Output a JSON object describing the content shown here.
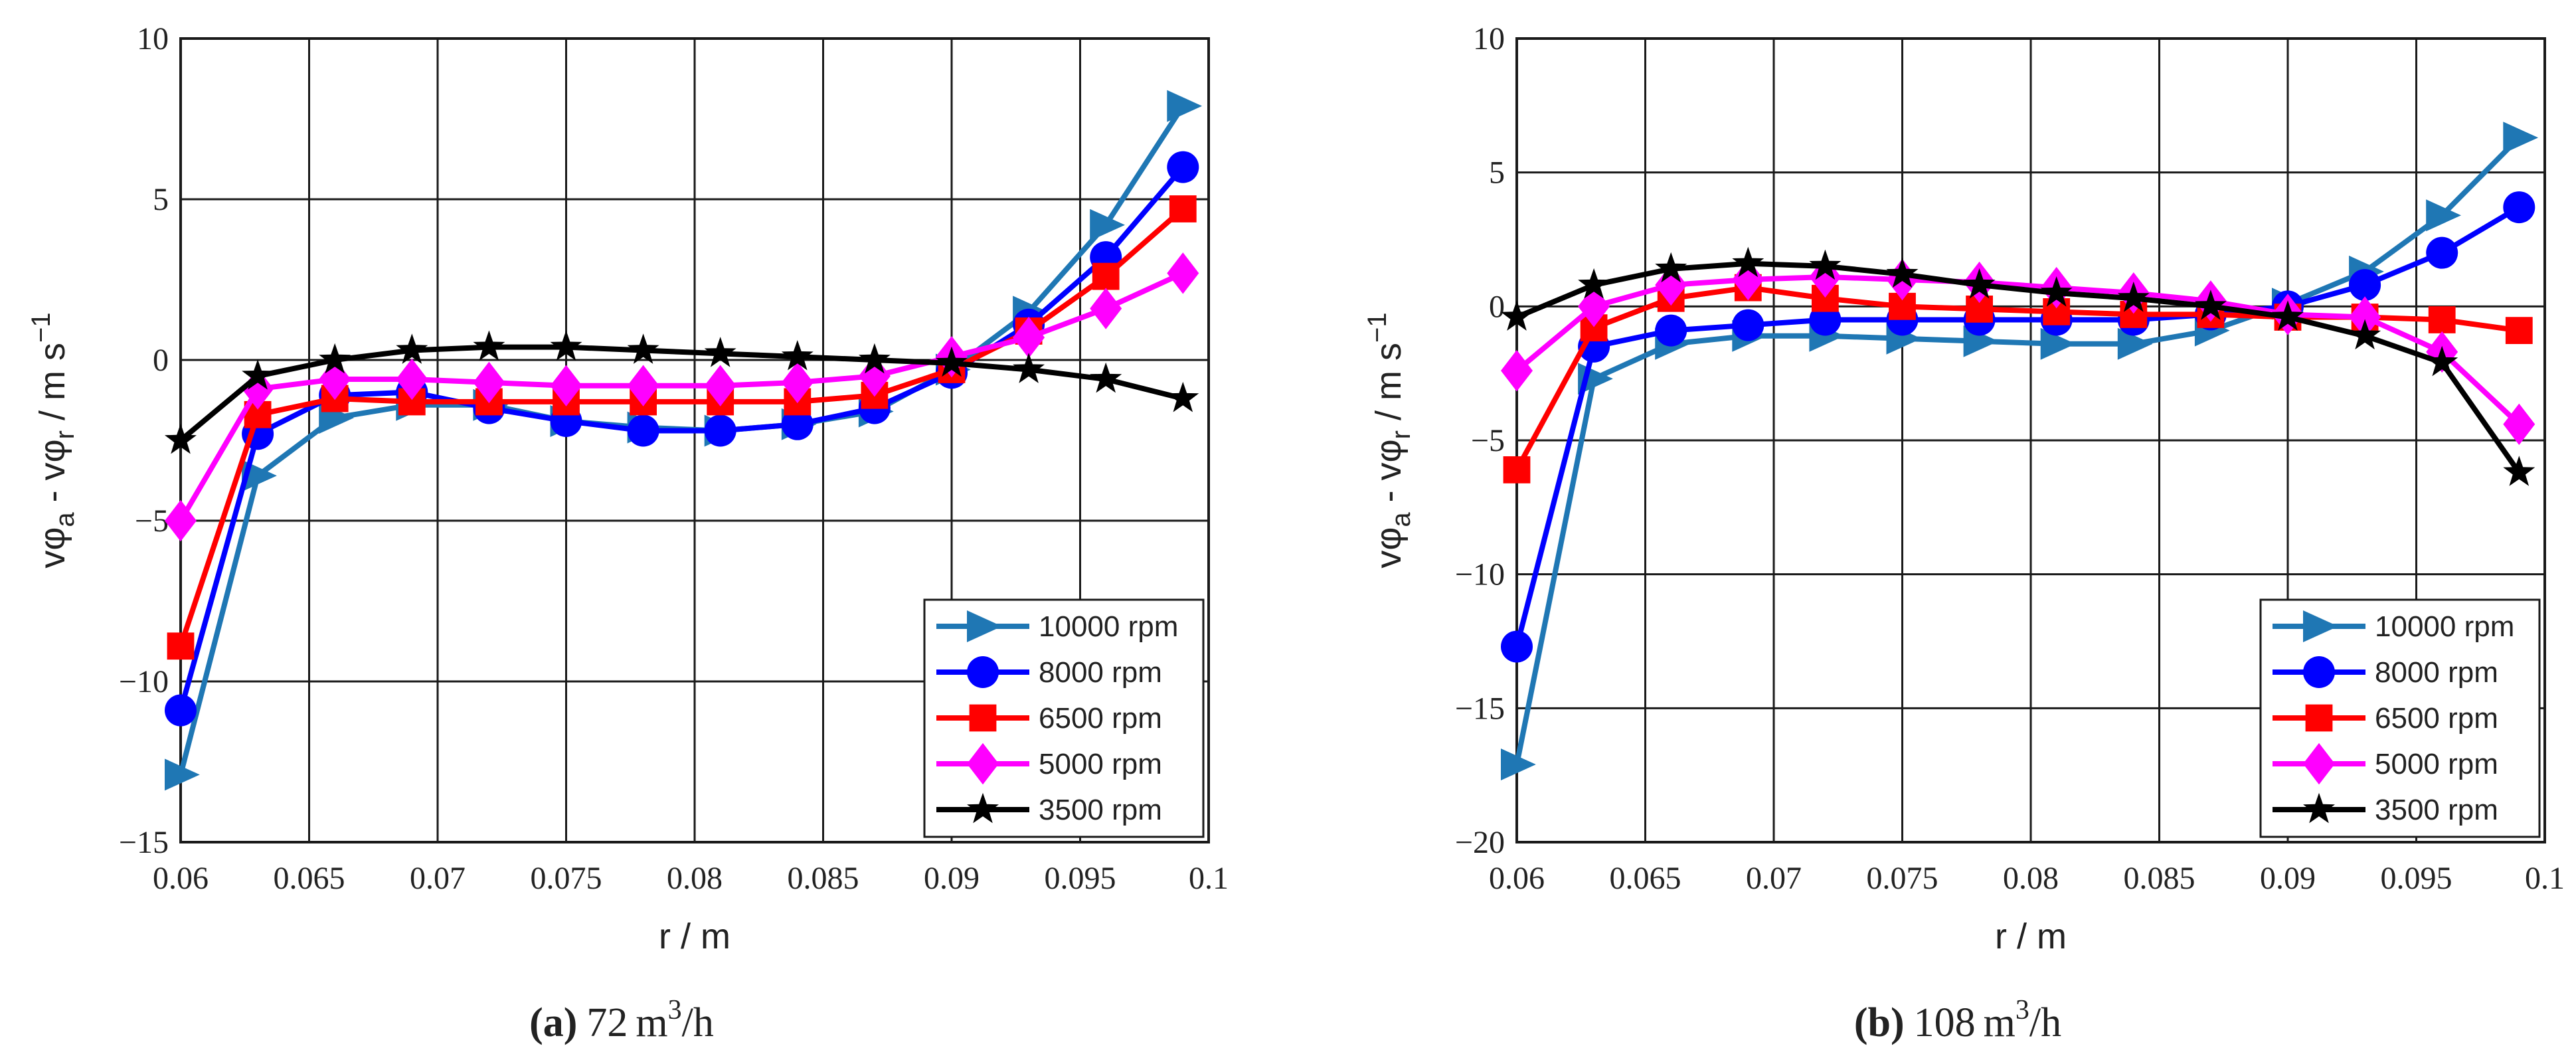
{
  "chart_data": [
    {
      "type": "line",
      "caption": {
        "letter": "(a)",
        "value": "72",
        "unit": "m",
        "sup": "3",
        "per": "/h"
      },
      "xlabel": "r / m",
      "ylabel": {
        "main": "vφ",
        "sub_a": "a",
        "mid": " - vφ",
        "sub_r": "r",
        "tail": " / m s",
        "sup": "−1"
      },
      "xlim": [
        0.06,
        0.1
      ],
      "ylim": [
        -15,
        10
      ],
      "xticks": [
        0.06,
        0.065,
        0.07,
        0.075,
        0.08,
        0.085,
        0.09,
        0.095,
        0.1
      ],
      "xtick_labels": [
        "0.06",
        "0.065",
        "0.07",
        "0.075",
        "0.08",
        "0.085",
        "0.09",
        "0.095",
        "0.1"
      ],
      "yticks": [
        -15,
        -10,
        -5,
        0,
        5,
        10
      ],
      "ytick_labels": [
        "−15",
        "−10",
        "−5",
        "0",
        "5",
        "10"
      ],
      "grid": true,
      "legend_position": "bottom-right",
      "x": [
        0.06,
        0.063,
        0.066,
        0.069,
        0.072,
        0.075,
        0.078,
        0.081,
        0.084,
        0.087,
        0.09,
        0.093,
        0.096,
        0.099
      ],
      "series": [
        {
          "name": "10000 rpm",
          "color": "#1f77b4",
          "marker": "triangle-right",
          "values": [
            -12.9,
            -3.6,
            -1.8,
            -1.4,
            -1.4,
            -1.9,
            -2.1,
            -2.2,
            -2.0,
            -1.6,
            -0.3,
            1.5,
            4.2,
            7.9
          ]
        },
        {
          "name": "8000 rpm",
          "color": "#0000ff",
          "marker": "circle",
          "values": [
            -10.9,
            -2.3,
            -1.1,
            -1.0,
            -1.5,
            -1.9,
            -2.2,
            -2.2,
            -2.0,
            -1.5,
            -0.4,
            1.1,
            3.2,
            6.0
          ]
        },
        {
          "name": "6500 rpm",
          "color": "#ff0000",
          "marker": "square",
          "values": [
            -8.9,
            -1.7,
            -1.2,
            -1.3,
            -1.3,
            -1.3,
            -1.3,
            -1.3,
            -1.3,
            -1.1,
            -0.3,
            0.9,
            2.6,
            4.7
          ]
        },
        {
          "name": "5000 rpm",
          "color": "#ff00ff",
          "marker": "diamond",
          "values": [
            -5.0,
            -0.9,
            -0.6,
            -0.6,
            -0.7,
            -0.8,
            -0.8,
            -0.8,
            -0.7,
            -0.5,
            0.1,
            0.7,
            1.6,
            2.7
          ]
        },
        {
          "name": "3500 rpm",
          "color": "#000000",
          "marker": "star",
          "values": [
            -2.5,
            -0.5,
            0.0,
            0.3,
            0.4,
            0.4,
            0.3,
            0.2,
            0.1,
            0.0,
            -0.1,
            -0.3,
            -0.6,
            -1.2
          ]
        }
      ]
    },
    {
      "type": "line",
      "caption": {
        "letter": "(b)",
        "value": "108",
        "unit": "m",
        "sup": "3",
        "per": "/h"
      },
      "xlabel": "r / m",
      "ylabel": {
        "main": "vφ",
        "sub_a": "a",
        "mid": " - vφ",
        "sub_r": "r",
        "tail": " / m s",
        "sup": "−1"
      },
      "xlim": [
        0.06,
        0.1
      ],
      "ylim": [
        -20,
        10
      ],
      "xticks": [
        0.06,
        0.065,
        0.07,
        0.075,
        0.08,
        0.085,
        0.09,
        0.095,
        0.1
      ],
      "xtick_labels": [
        "0.06",
        "0.065",
        "0.07",
        "0.075",
        "0.08",
        "0.085",
        "0.09",
        "0.095",
        "0.1"
      ],
      "yticks": [
        -20,
        -15,
        -10,
        -5,
        0,
        5,
        10
      ],
      "ytick_labels": [
        "−20",
        "−15",
        "−10",
        "−5",
        "0",
        "5",
        "10"
      ],
      "grid": true,
      "legend_position": "bottom-right",
      "x": [
        0.06,
        0.063,
        0.066,
        0.069,
        0.072,
        0.075,
        0.078,
        0.081,
        0.084,
        0.087,
        0.09,
        0.093,
        0.096,
        0.099
      ],
      "series": [
        {
          "name": "10000 rpm",
          "color": "#1f77b4",
          "marker": "triangle-right",
          "values": [
            -17.1,
            -2.7,
            -1.4,
            -1.1,
            -1.1,
            -1.2,
            -1.3,
            -1.4,
            -1.4,
            -0.9,
            0.1,
            1.3,
            3.4,
            6.3
          ]
        },
        {
          "name": "8000 rpm",
          "color": "#0000ff",
          "marker": "circle",
          "values": [
            -12.7,
            -1.5,
            -0.9,
            -0.7,
            -0.5,
            -0.5,
            -0.5,
            -0.5,
            -0.5,
            -0.3,
            0.0,
            0.8,
            2.0,
            3.7
          ]
        },
        {
          "name": "6500 rpm",
          "color": "#ff0000",
          "marker": "square",
          "values": [
            -6.1,
            -0.8,
            0.3,
            0.7,
            0.3,
            0.0,
            -0.1,
            -0.2,
            -0.3,
            -0.3,
            -0.4,
            -0.4,
            -0.5,
            -0.9
          ]
        },
        {
          "name": "5000 rpm",
          "color": "#ff00ff",
          "marker": "diamond",
          "values": [
            -2.4,
            0.0,
            0.8,
            1.0,
            1.1,
            1.0,
            0.9,
            0.7,
            0.5,
            0.2,
            -0.3,
            -0.4,
            -1.7,
            -4.4
          ]
        },
        {
          "name": "3500 rpm",
          "color": "#000000",
          "marker": "star",
          "values": [
            -0.4,
            0.8,
            1.4,
            1.6,
            1.5,
            1.2,
            0.8,
            0.5,
            0.3,
            0.0,
            -0.4,
            -1.1,
            -2.1,
            -6.2
          ]
        }
      ]
    }
  ]
}
